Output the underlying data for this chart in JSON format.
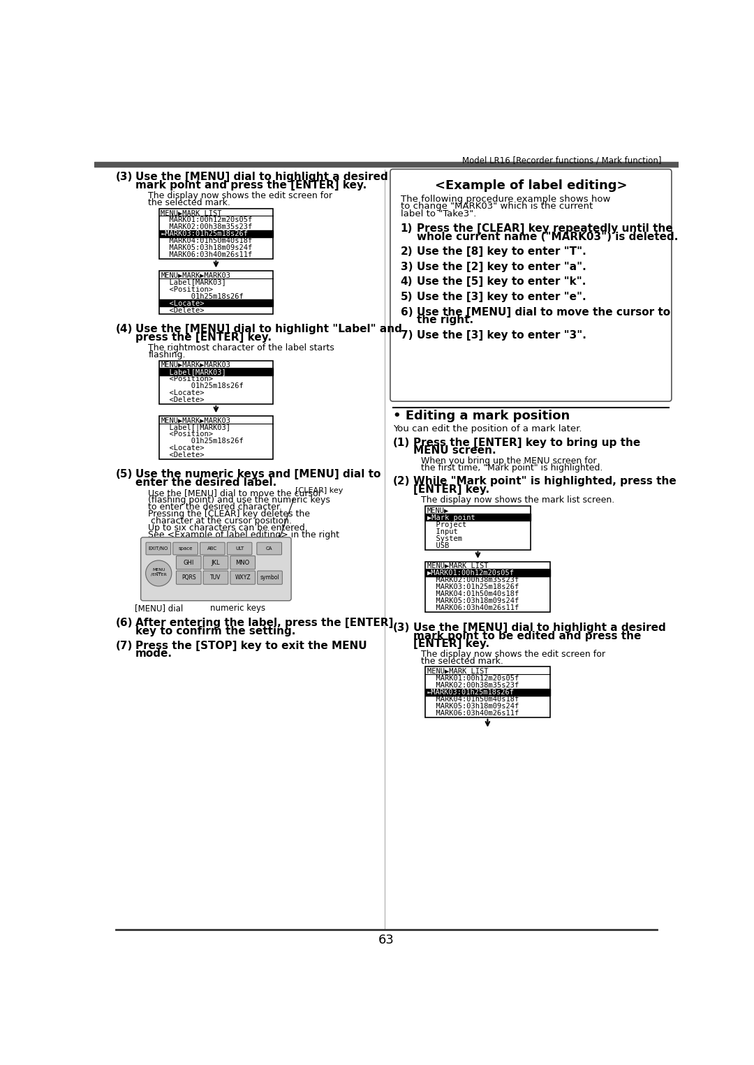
{
  "page_header": "Model LR16 [Recorder functions / Mark function]",
  "page_number": "63",
  "bg_color": "#ffffff",
  "header_bar_color": "#555555",
  "left_col": {
    "screen1_title": "MENU▶MARK LIST",
    "screen1_lines": [
      "  MARK01:00h12m20s05f",
      "  MARK02:00h38m35s23f",
      "⇤MARK03:01h25m18s26f",
      "  MARK04:01h50m40s18f",
      "  MARK05:03h18m09s24f",
      "  MARK06:03h40m26s11f"
    ],
    "screen1_highlight": 2,
    "screen2_title": "MENU▶MARK▶MARK03",
    "screen2_lines": [
      "  Label[MARK03]",
      "  <Position>",
      "       01h25m18s26f",
      "  <Locate>",
      "  <Delete>"
    ],
    "screen2_highlight": 3,
    "screen3_title": "MENU▶MARK▶MARK03",
    "screen3_lines": [
      "  Label[MARK03]",
      "  <Position>",
      "       01h25m18s26f",
      "  <Locate>",
      "  <Delete>"
    ],
    "screen3_highlight": 0,
    "screen4_title": "MENU▶MARK▶MARK03",
    "screen4_lines": [
      "  Label[|MARK03]",
      "  <Position>",
      "       01h25m18s26f",
      "  <Locate>",
      "  <Delete>"
    ],
    "screen4_highlight": -1
  },
  "right_col": {
    "example_title": "<Example of label editing>",
    "example_body_lines": [
      "The following procedure example shows how",
      "to change \"MARK03\" which is the current",
      "label to \"Take3\"."
    ],
    "example_steps": [
      [
        "1)",
        "Press the [CLEAR] key repeatedly until the",
        "whole current name (\"MARK03\") is deleted.",
        true
      ],
      [
        "2)",
        "Use the [8] key to enter \"T\".",
        "",
        false
      ],
      [
        "3)",
        "Use the [2] key to enter \"a\".",
        "",
        false
      ],
      [
        "4)",
        "Use the [5] key to enter \"k\".",
        "",
        false
      ],
      [
        "5)",
        "Use the [3] key to enter \"e\".",
        "",
        false
      ],
      [
        "6)",
        "Use the [MENU] dial to move the cursor to",
        "the right.",
        false
      ],
      [
        "7)",
        "Use the [3] key to enter \"3\".",
        "",
        false
      ]
    ],
    "editing_title": "• Editing a mark position",
    "editing_body": "You can edit the position of a mark later.",
    "menu_screen_title": "MENU▶",
    "menu_screen_lines": [
      "▶Mark point",
      "  Project",
      "  Input",
      "  System",
      "  USB"
    ],
    "menu_highlight": 0,
    "marklist_screen_title": "MENU▶MARK LIST",
    "marklist_screen_lines": [
      "▶MARK01:00h12m20s05f",
      "  MARK02:00h38m35s23f",
      "  MARK03:01h25m18s26f",
      "  MARK04:01h50m40s18f",
      "  MARK05:03h18m09s24f",
      "  MARK06:03h40m26s11f"
    ],
    "marklist_highlight": 0,
    "editscreen_title": "MENU▶MARK LIST",
    "editscreen_lines": [
      "  MARK01:00h12m20s05f",
      "  MARK02:00h38m35s23f",
      "⇤MARK03:01h25m18s26f",
      "  MARK04:01h50m40s18f",
      "  MARK05:03h18m09s24f",
      "  MARK06:03h40m26s11f"
    ],
    "editscreen_highlight": 2
  }
}
